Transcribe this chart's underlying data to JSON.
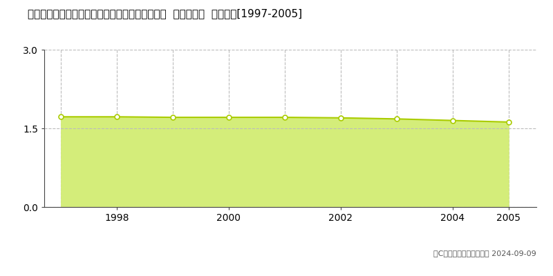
{
  "title": "福島県東白川郡髨川村大字富田字彦次郎２８７番  基準地価格  地価推移[1997-2005]",
  "years": [
    1997,
    1998,
    1999,
    2000,
    2001,
    2002,
    2003,
    2004,
    2005
  ],
  "values": [
    1.72,
    1.72,
    1.71,
    1.71,
    1.71,
    1.7,
    1.68,
    1.65,
    1.62
  ],
  "fill_color": "#d4ed7a",
  "line_color": "#aacc00",
  "marker_color": "#ffffff",
  "marker_edge_color": "#aacc00",
  "ylim": [
    0,
    3
  ],
  "yticks": [
    0,
    1.5,
    3
  ],
  "grid_color": "#bbbbbb",
  "bg_color": "#ffffff",
  "legend_square_color": "#d4ed7a",
  "copyright_text": "（C）土地価格ドットコム 2024-09-09",
  "xlabel_ticks": [
    1998,
    2000,
    2002,
    2004,
    2005
  ],
  "xmin": 1996.7,
  "xmax": 2005.5
}
